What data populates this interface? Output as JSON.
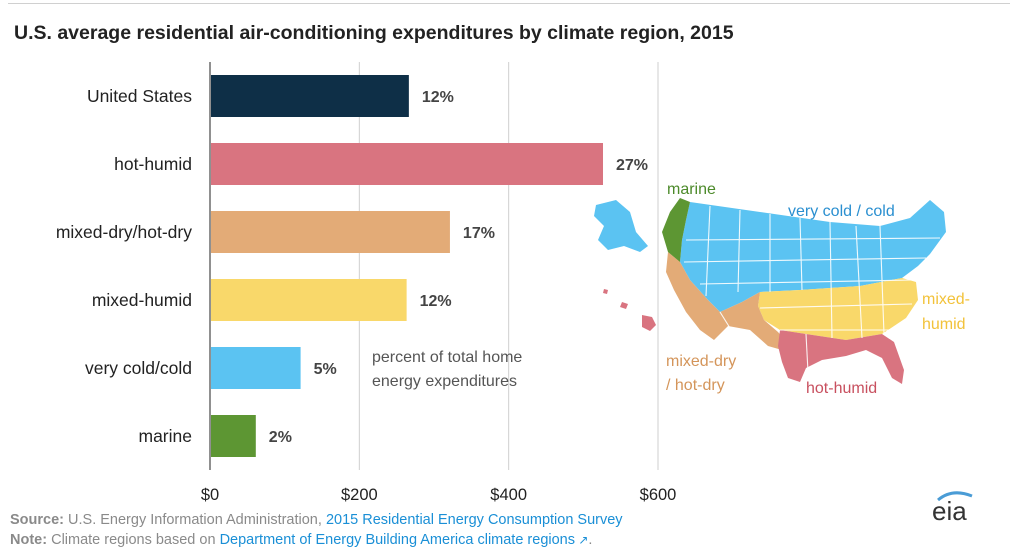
{
  "chart_data": {
    "type": "bar",
    "orientation": "horizontal",
    "title": "U.S. average residential air-conditioning expenditures by climate region, 2015",
    "categories": [
      "United States",
      "hot-humid",
      "mixed-dry/hot-dry",
      "mixed-humid",
      "very cold/cold",
      "marine"
    ],
    "values": [
      265,
      525,
      320,
      262,
      120,
      60
    ],
    "percent_labels": [
      "12%",
      "27%",
      "17%",
      "12%",
      "5%",
      "2%"
    ],
    "colors": [
      "#0e2f47",
      "#d97480",
      "#e3ab77",
      "#f9d86a",
      "#5bc3f2",
      "#5d9633"
    ],
    "xlim": [
      0,
      600
    ],
    "xticks": [
      0,
      200,
      400,
      600
    ],
    "xtick_labels": [
      "$0",
      "$200",
      "$400",
      "$600"
    ],
    "grid": true,
    "annotation": [
      "percent of total home",
      "energy expenditures"
    ]
  },
  "map": {
    "labels": {
      "marine": "marine",
      "very_cold": "very cold / cold",
      "mixed_humid": [
        "mixed-",
        "humid"
      ],
      "mixed_dry": [
        "mixed-dry",
        "/ hot-dry"
      ],
      "hot_humid": "hot-humid"
    },
    "colors": {
      "marine": "#5d9633",
      "very_cold": "#5bc3f2",
      "mixed_humid": "#f9d86a",
      "mixed_dry": "#e3ab77",
      "hot_humid": "#d97480"
    }
  },
  "footer": {
    "source_label": "Source:",
    "source_text": "U.S. Energy Information Administration,",
    "source_link": "2015 Residential Energy Consumption Survey",
    "note_label": "Note:",
    "note_text": "Climate regions based on",
    "note_link": "Department of Energy Building America climate regions",
    "note_end": "."
  },
  "logo": {
    "text": "eia"
  }
}
